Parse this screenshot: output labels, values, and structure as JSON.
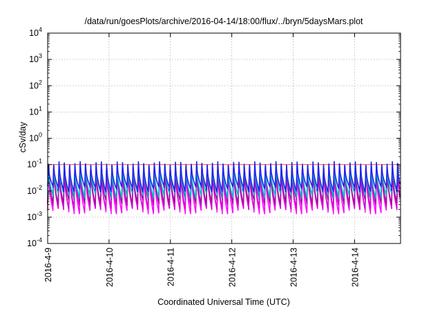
{
  "chart_data": {
    "type": "line",
    "title": "/data/run/goesPlots/archive/2016-04-14/18:00/flux/../bryn/5daysMars.plot",
    "xlabel": "Coordinated Universal Time (UTC)",
    "ylabel": "cSv/day",
    "yscale": "log",
    "ylim": [
      0.0001,
      10000
    ],
    "xlim": [
      "2016-04-09",
      "2016-04-14 18:00"
    ],
    "grid": true,
    "x_ticks": [
      {
        "value": "2016-04-09",
        "label": "2016-4-9"
      },
      {
        "value": "2016-04-10",
        "label": "2016-4-10"
      },
      {
        "value": "2016-04-11",
        "label": "2016-4-11"
      },
      {
        "value": "2016-04-12",
        "label": "2016-4-12"
      },
      {
        "value": "2016-04-13",
        "label": "2016-4-13"
      },
      {
        "value": "2016-04-14",
        "label": "2016-4-14"
      }
    ],
    "y_ticks": [
      {
        "value": 0.0001,
        "base": "10",
        "exp": "-4"
      },
      {
        "value": 0.001,
        "base": "10",
        "exp": "-3"
      },
      {
        "value": 0.01,
        "base": "10",
        "exp": "-2"
      },
      {
        "value": 0.1,
        "base": "10",
        "exp": "-1"
      },
      {
        "value": 1,
        "base": "10",
        "exp": "0"
      },
      {
        "value": 10,
        "base": "10",
        "exp": "1"
      },
      {
        "value": 100,
        "base": "10",
        "exp": "2"
      },
      {
        "value": 1000,
        "base": "10",
        "exp": "3"
      },
      {
        "value": 10000,
        "base": "10",
        "exp": "4"
      }
    ],
    "reference_line": {
      "value": 0.1,
      "color": "#ff4d4d"
    },
    "cycles_per_day": 11.6,
    "series_style": "sawtooth: sharp rise to peak then decay to trough, repeating",
    "series": [
      {
        "color": "#ff00ff",
        "peak": 0.08,
        "trough": 0.0018
      },
      {
        "color": "#d800d8",
        "peak": 0.085,
        "trough": 0.0026
      },
      {
        "color": "#a0149a",
        "peak": 0.09,
        "trough": 0.004
      },
      {
        "color": "#00b8c8",
        "peak": 0.095,
        "trough": 0.007
      },
      {
        "color": "#2222ee",
        "peak": 0.11,
        "trough": 0.012
      }
    ]
  }
}
